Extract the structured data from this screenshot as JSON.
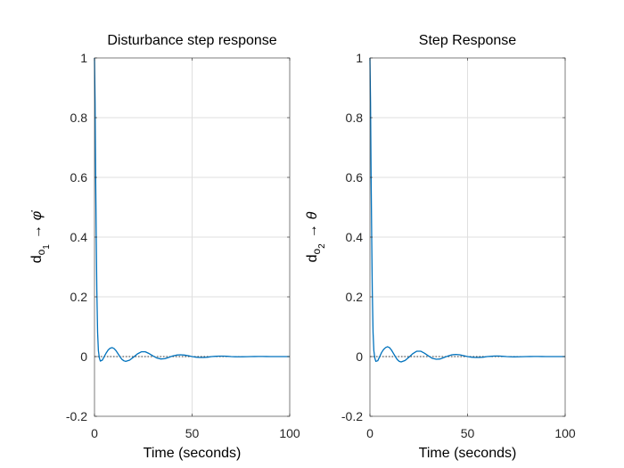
{
  "chart_data": [
    {
      "type": "line",
      "title": "Disturbance step response",
      "xlabel": "Time (seconds)",
      "ylabel": {
        "main": "d",
        "sub1": "o",
        "sub2": "1",
        "arrow": "→",
        "symbol": "φ̇"
      },
      "xlim": [
        0,
        100
      ],
      "ylim": [
        -0.2,
        1
      ],
      "xticks": [
        0,
        50,
        100
      ],
      "xtick_labels": [
        "0",
        "50",
        "100"
      ],
      "yticks": [
        -0.2,
        0,
        0.2,
        0.4,
        0.6,
        0.8,
        1
      ],
      "ytick_labels": [
        "-0.2",
        "0",
        "0.2",
        "0.4",
        "0.6",
        "0.8",
        "1"
      ],
      "grid": true,
      "reference_line": {
        "y": 0,
        "style": "dotted"
      },
      "series": [
        {
          "name": "response",
          "color": "#0072BD",
          "x": [
            0,
            0.3,
            0.6,
            0.9,
            1.2,
            1.6,
            2,
            2.5,
            3,
            4,
            5,
            6,
            7,
            8,
            9,
            10,
            11,
            12,
            13,
            14,
            15,
            16,
            18,
            20,
            22,
            24,
            26,
            28,
            30,
            32,
            34,
            36,
            38,
            40,
            42,
            44,
            46,
            48,
            50,
            52,
            54,
            56,
            58,
            60,
            62,
            64,
            66,
            68,
            70,
            72,
            74,
            76,
            78,
            80,
            82,
            84,
            86,
            88,
            90,
            92,
            94,
            96,
            98,
            100
          ],
          "y": [
            1.0,
            0.85,
            0.6,
            0.4,
            0.22,
            0.08,
            0.02,
            -0.005,
            -0.015,
            -0.012,
            0.0,
            0.012,
            0.022,
            0.028,
            0.03,
            0.027,
            0.02,
            0.01,
            0.0,
            -0.009,
            -0.014,
            -0.016,
            -0.012,
            -0.002,
            0.009,
            0.016,
            0.016,
            0.01,
            0.002,
            -0.005,
            -0.008,
            -0.007,
            -0.003,
            0.002,
            0.005,
            0.006,
            0.005,
            0.003,
            0.0,
            -0.002,
            -0.003,
            -0.003,
            -0.002,
            0.0,
            0.001,
            0.0015,
            0.0015,
            0.001,
            0.0,
            -0.0005,
            -0.0008,
            -0.0006,
            -0.0003,
            0.0,
            0.0002,
            0.0003,
            0.0003,
            0.0002,
            0.0,
            0.0,
            0.0,
            0.0,
            0.0,
            0.0
          ]
        }
      ]
    },
    {
      "type": "line",
      "title": "Step Response",
      "xlabel": "Time (seconds)",
      "ylabel": {
        "main": "d",
        "sub1": "o",
        "sub2": "2",
        "arrow": "→",
        "symbol": "θ"
      },
      "xlim": [
        0,
        100
      ],
      "ylim": [
        -0.2,
        1
      ],
      "xticks": [
        0,
        50,
        100
      ],
      "xtick_labels": [
        "0",
        "50",
        "100"
      ],
      "yticks": [
        -0.2,
        0,
        0.2,
        0.4,
        0.6,
        0.8,
        1
      ],
      "ytick_labels": [
        "-0.2",
        "0",
        "0.2",
        "0.4",
        "0.6",
        "0.8",
        "1"
      ],
      "grid": true,
      "reference_line": {
        "y": 0,
        "style": "dotted"
      },
      "series": [
        {
          "name": "response",
          "color": "#0072BD",
          "x": [
            0,
            0.3,
            0.6,
            0.9,
            1.2,
            1.6,
            2,
            2.5,
            3,
            4,
            5,
            6,
            7,
            8,
            9,
            10,
            11,
            12,
            13,
            14,
            15,
            16,
            18,
            20,
            22,
            24,
            26,
            28,
            30,
            32,
            34,
            36,
            38,
            40,
            42,
            44,
            46,
            48,
            50,
            52,
            54,
            56,
            58,
            60,
            62,
            64,
            66,
            68,
            70,
            72,
            74,
            76,
            78,
            80,
            82,
            84,
            86,
            88,
            90,
            92,
            94,
            96,
            98,
            100
          ],
          "y": [
            1.0,
            0.85,
            0.6,
            0.4,
            0.22,
            0.08,
            0.02,
            -0.005,
            -0.016,
            -0.014,
            0.0,
            0.014,
            0.024,
            0.03,
            0.033,
            0.03,
            0.022,
            0.011,
            0.0,
            -0.01,
            -0.016,
            -0.018,
            -0.013,
            -0.002,
            0.01,
            0.018,
            0.018,
            0.011,
            0.002,
            -0.006,
            -0.009,
            -0.008,
            -0.003,
            0.002,
            0.006,
            0.007,
            0.006,
            0.003,
            0.0,
            -0.002,
            -0.003,
            -0.003,
            -0.002,
            0.0,
            0.001,
            0.0018,
            0.0018,
            0.001,
            0.0,
            -0.0006,
            -0.0009,
            -0.0007,
            -0.0003,
            0.0,
            0.0002,
            0.0003,
            0.0003,
            0.0002,
            0.0,
            0.0,
            0.0,
            0.0,
            0.0,
            0.0
          ]
        }
      ]
    }
  ],
  "style": {
    "background": "#ffffff",
    "axes_background": "#ffffff",
    "axes_color": "#262626",
    "grid_color": "#dfdfdf",
    "tick_label_color": "#262626",
    "title_color": "#000000",
    "reference_color": "#000000"
  }
}
